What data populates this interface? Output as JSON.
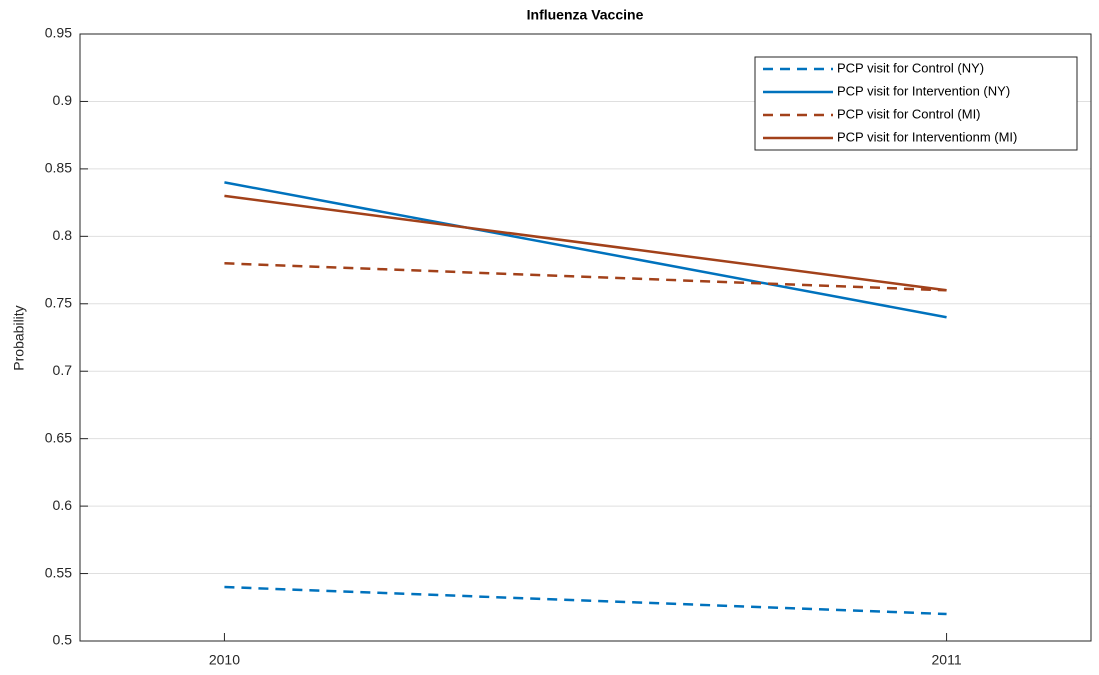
{
  "chart_data": {
    "type": "line",
    "title": "Influenza Vaccine",
    "ylabel": "Probability",
    "x": [
      2010,
      2011
    ],
    "series": [
      {
        "name": "PCP visit for Control (NY)",
        "color": "#0072bd",
        "style": "dashed",
        "values": [
          0.54,
          0.52
        ]
      },
      {
        "name": "PCP visit for Intervention (NY)",
        "color": "#0072bd",
        "style": "solid",
        "values": [
          0.84,
          0.74
        ]
      },
      {
        "name": "PCP visit for Control (MI)",
        "color": "#a2411a",
        "style": "dashed",
        "values": [
          0.78,
          0.76
        ]
      },
      {
        "name": "PCP visit for Interventionm (MI)",
        "color": "#a2411a",
        "style": "solid",
        "values": [
          0.83,
          0.76
        ]
      }
    ],
    "xlim": [
      2009.8,
      2011.2
    ],
    "xticks": [
      2010,
      2011
    ],
    "ylim": [
      0.5,
      0.95
    ],
    "yticks": [
      0.5,
      0.55,
      0.6,
      0.65,
      0.7,
      0.75,
      0.8,
      0.85,
      0.9,
      0.95
    ],
    "grid": "y",
    "legend": "northeast"
  }
}
